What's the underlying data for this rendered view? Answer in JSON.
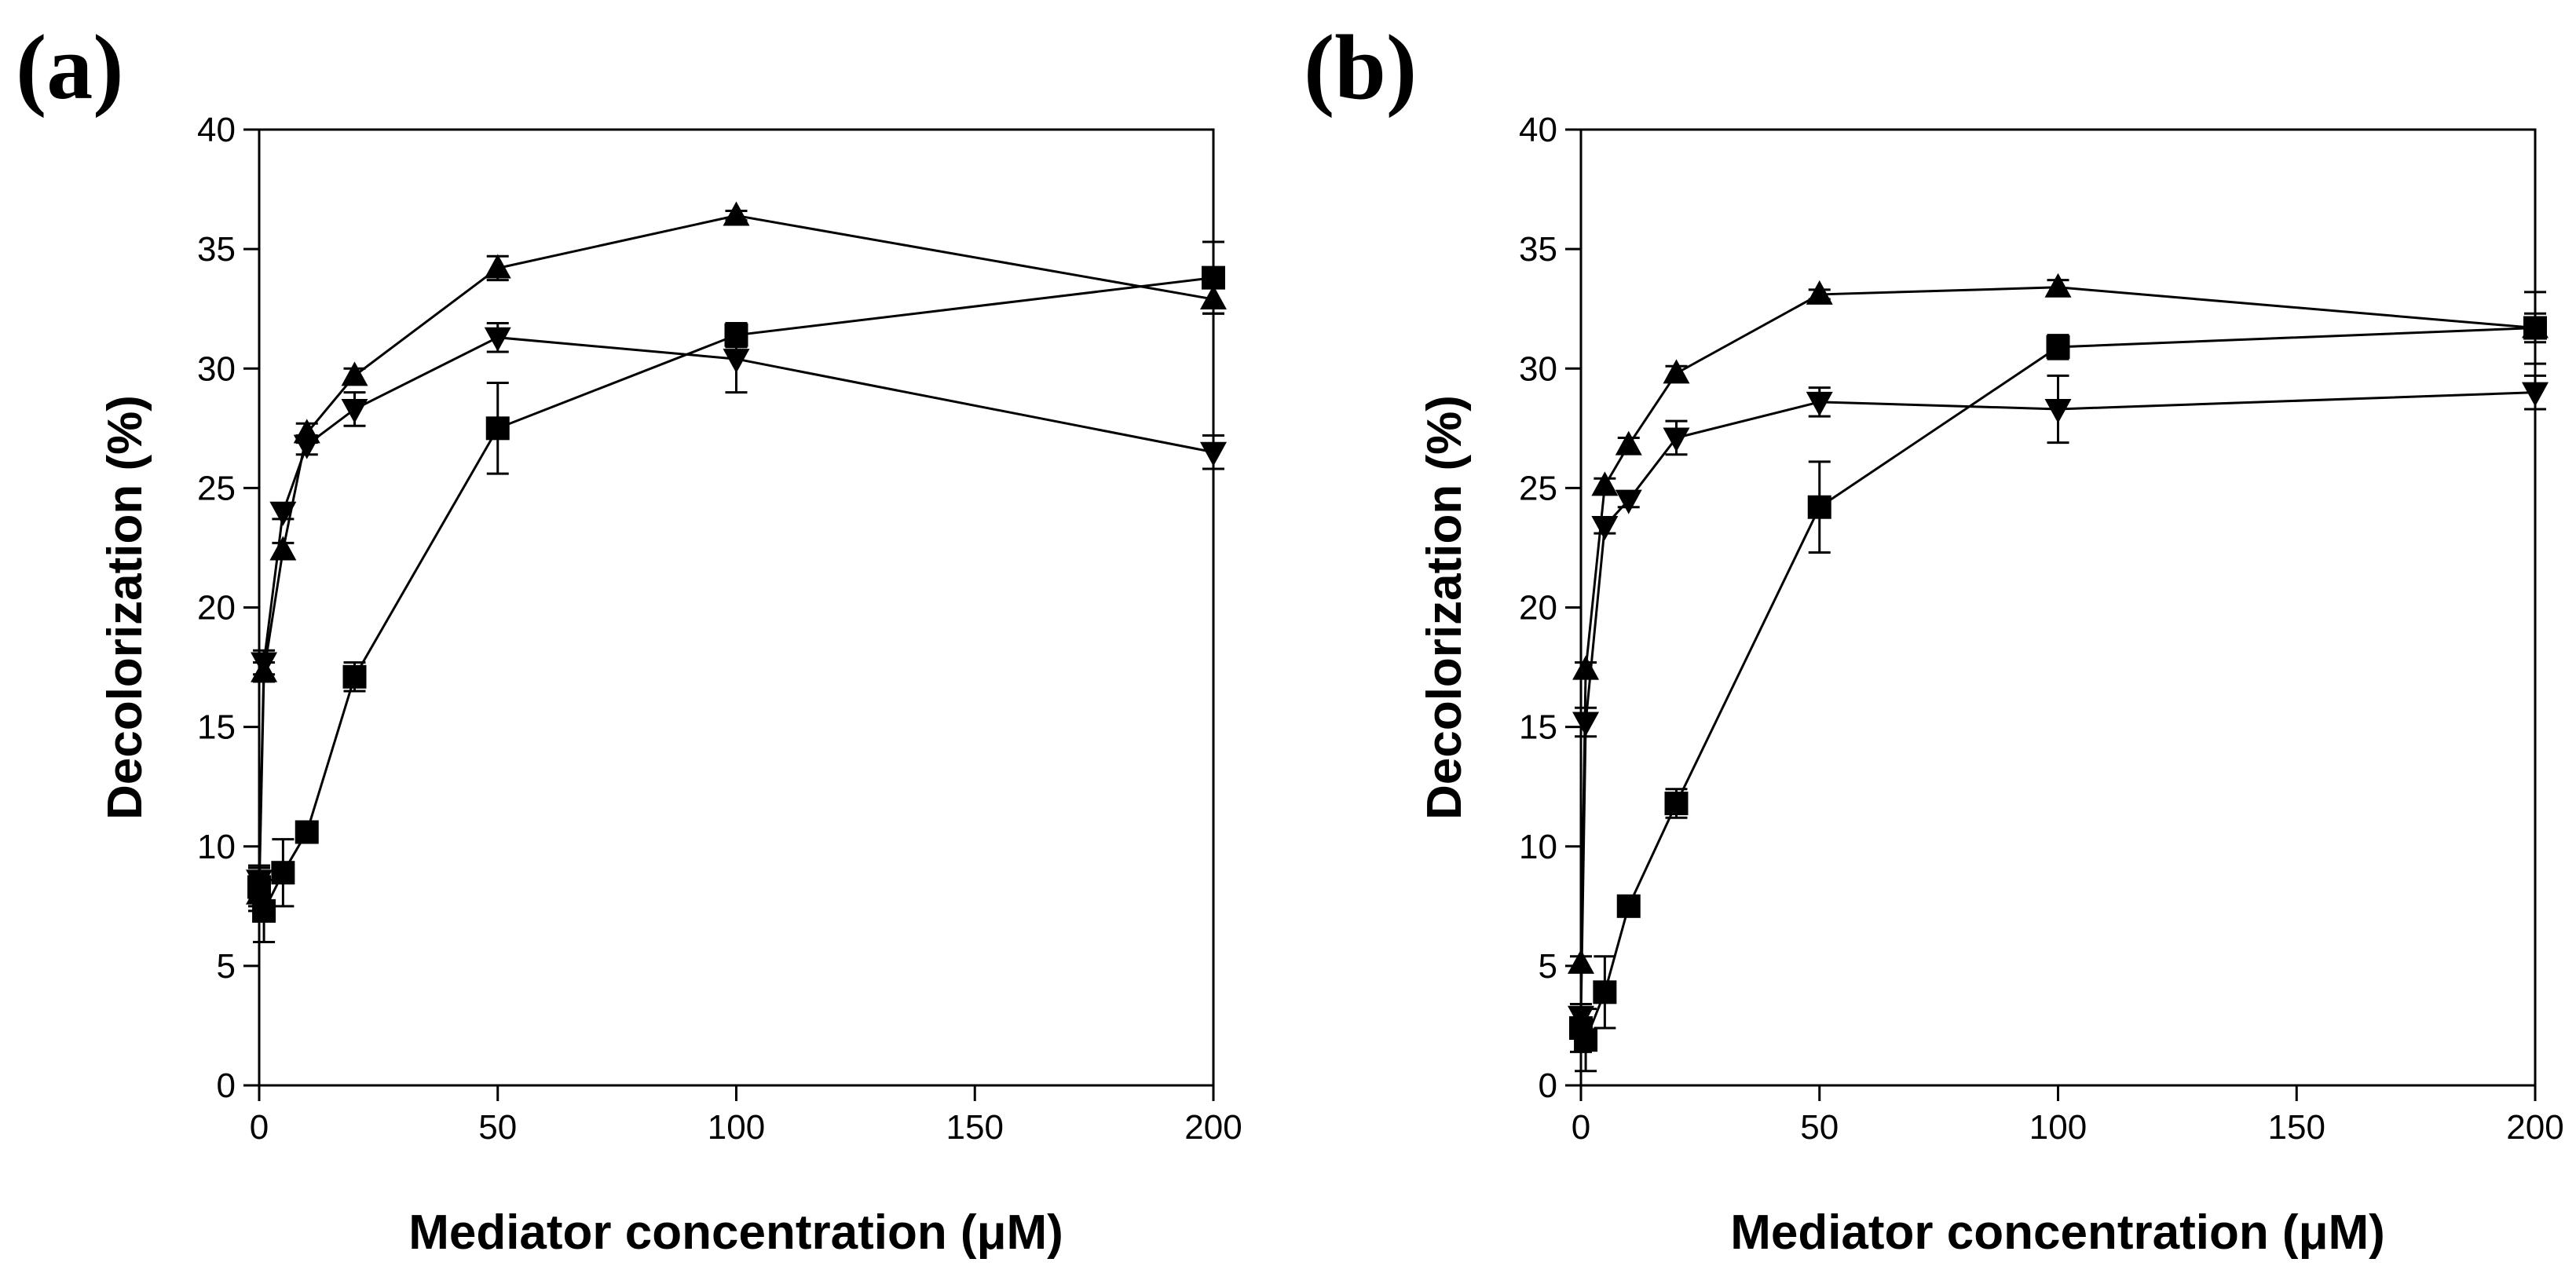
{
  "chart_data": [
    {
      "type": "line",
      "panel_label": "(a)",
      "xlabel": "Mediator concentration (μM)",
      "ylabel": "Decolorization (%)",
      "xlim": [
        0,
        200
      ],
      "ylim": [
        0,
        40
      ],
      "xticks": [
        0,
        50,
        100,
        150,
        200
      ],
      "yticks": [
        0,
        5,
        10,
        15,
        20,
        25,
        30,
        35,
        40
      ],
      "series": [
        {
          "name": "square",
          "marker": "square",
          "points": [
            {
              "x": 0,
              "y": 8.3,
              "err": 0.8
            },
            {
              "x": 1,
              "y": 7.3,
              "err": 1.3
            },
            {
              "x": 5,
              "y": 8.9,
              "err": 1.4
            },
            {
              "x": 10,
              "y": 10.6,
              "err": 0.4
            },
            {
              "x": 20,
              "y": 17.1,
              "err": 0.6
            },
            {
              "x": 50,
              "y": 27.5,
              "err": 1.9
            },
            {
              "x": 100,
              "y": 31.4,
              "err": 0.5
            },
            {
              "x": 200,
              "y": 33.8,
              "err": 1.5
            }
          ]
        },
        {
          "name": "triangle-up",
          "marker": "triangle-up",
          "points": [
            {
              "x": 0,
              "y": 8.0,
              "err": 0.7
            },
            {
              "x": 1,
              "y": 17.3,
              "err": 0.4
            },
            {
              "x": 5,
              "y": 22.4,
              "err": 0.3
            },
            {
              "x": 10,
              "y": 27.3,
              "err": 0.4
            },
            {
              "x": 20,
              "y": 29.7,
              "err": 0.3
            },
            {
              "x": 50,
              "y": 34.2,
              "err": 0.5
            },
            {
              "x": 100,
              "y": 36.4,
              "err": 0.2
            },
            {
              "x": 200,
              "y": 32.9,
              "err": 0.6
            }
          ]
        },
        {
          "name": "triangle-down",
          "marker": "triangle-down",
          "points": [
            {
              "x": 0,
              "y": 8.6,
              "err": 0.6
            },
            {
              "x": 1,
              "y": 17.7,
              "err": 0.5
            },
            {
              "x": 5,
              "y": 24.0,
              "err": 0.3
            },
            {
              "x": 10,
              "y": 26.8,
              "err": 0.4
            },
            {
              "x": 20,
              "y": 28.3,
              "err": 0.7
            },
            {
              "x": 50,
              "y": 31.3,
              "err": 0.6
            },
            {
              "x": 100,
              "y": 30.4,
              "err": 1.4
            },
            {
              "x": 200,
              "y": 26.5,
              "err": 0.7
            }
          ]
        }
      ]
    },
    {
      "type": "line",
      "panel_label": "(b)",
      "xlabel": "Mediator concentration (μM)",
      "ylabel": "Decolorization (%)",
      "xlim": [
        0,
        200
      ],
      "ylim": [
        0,
        40
      ],
      "xticks": [
        0,
        50,
        100,
        150,
        200
      ],
      "yticks": [
        0,
        5,
        10,
        15,
        20,
        25,
        30,
        35,
        40
      ],
      "series": [
        {
          "name": "square",
          "marker": "square",
          "points": [
            {
              "x": 0,
              "y": 2.4,
              "err": 1.0
            },
            {
              "x": 1,
              "y": 1.9,
              "err": 1.3
            },
            {
              "x": 5,
              "y": 3.9,
              "err": 1.5
            },
            {
              "x": 10,
              "y": 7.5,
              "err": 0.4
            },
            {
              "x": 20,
              "y": 11.8,
              "err": 0.6
            },
            {
              "x": 50,
              "y": 24.2,
              "err": 1.9
            },
            {
              "x": 100,
              "y": 30.9,
              "err": 0.5
            },
            {
              "x": 200,
              "y": 31.7,
              "err": 1.5
            }
          ]
        },
        {
          "name": "triangle-up",
          "marker": "triangle-up",
          "points": [
            {
              "x": 0,
              "y": 5.1,
              "err": 0.3
            },
            {
              "x": 1,
              "y": 17.4,
              "err": 0.3
            },
            {
              "x": 5,
              "y": 25.1,
              "err": 0.3
            },
            {
              "x": 10,
              "y": 26.8,
              "err": 0.3
            },
            {
              "x": 20,
              "y": 29.8,
              "err": 0.3
            },
            {
              "x": 50,
              "y": 33.1,
              "err": 0.2
            },
            {
              "x": 100,
              "y": 33.4,
              "err": 0.3
            },
            {
              "x": 200,
              "y": 31.7,
              "err": 0.6
            }
          ]
        },
        {
          "name": "triangle-down",
          "marker": "triangle-down",
          "points": [
            {
              "x": 0,
              "y": 2.9,
              "err": 0.5
            },
            {
              "x": 1,
              "y": 15.2,
              "err": 0.6
            },
            {
              "x": 5,
              "y": 23.4,
              "err": 0.3
            },
            {
              "x": 10,
              "y": 24.5,
              "err": 0.3
            },
            {
              "x": 20,
              "y": 27.1,
              "err": 0.7
            },
            {
              "x": 50,
              "y": 28.6,
              "err": 0.6
            },
            {
              "x": 100,
              "y": 28.3,
              "err": 1.4
            },
            {
              "x": 200,
              "y": 29.0,
              "err": 0.7
            }
          ]
        }
      ]
    }
  ]
}
